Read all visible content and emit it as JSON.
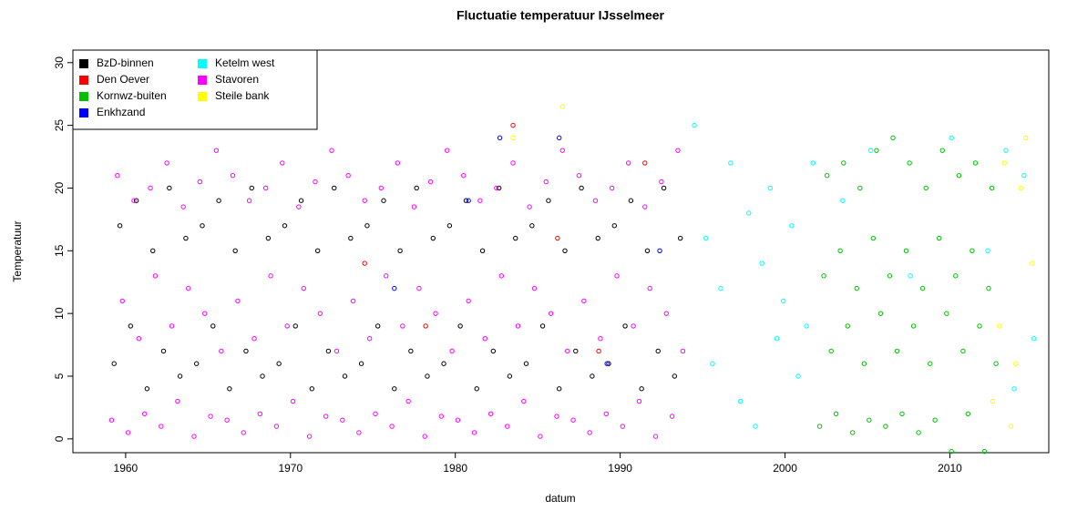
{
  "chart_data": {
    "type": "scatter",
    "title": "Fluctuatie temperatuur IJsselmeer",
    "x_label": "datum",
    "y_label": "Temperatuur",
    "xlim": [
      1956.8,
      2016
    ],
    "ylim": [
      -1.1,
      31
    ],
    "xticks": [
      1960,
      1970,
      1980,
      1990,
      2000,
      2010
    ],
    "yticks": [
      0,
      5,
      10,
      15,
      20,
      25,
      30
    ],
    "legend": "topleft",
    "series": [
      {
        "name": "BzD-binnen",
        "color": "#000000",
        "x": [
          1959.3,
          1959.65,
          1960.3,
          1960.65,
          1961.3,
          1961.65,
          1962.3,
          1962.65,
          1963.3,
          1963.65,
          1964.3,
          1964.65,
          1965.3,
          1965.65,
          1966.3,
          1966.65,
          1967.3,
          1967.65,
          1968.3,
          1968.65,
          1969.3,
          1969.65,
          1970.3,
          1970.65,
          1971.3,
          1971.65,
          1972.3,
          1972.65,
          1973.3,
          1973.65,
          1974.3,
          1974.65,
          1975.3,
          1975.65,
          1976.3,
          1976.65,
          1977.3,
          1977.65,
          1978.3,
          1978.65,
          1979.3,
          1979.65,
          1980.3,
          1980.65,
          1981.3,
          1981.65,
          1982.3,
          1982.65,
          1983.3,
          1983.65,
          1984.3,
          1984.65,
          1985.3,
          1985.65,
          1986.3,
          1986.65,
          1987.3,
          1987.65,
          1988.3,
          1988.65,
          1989.3,
          1989.65,
          1990.3,
          1990.65,
          1991.3,
          1991.65,
          1992.3,
          1992.65,
          1993.3,
          1993.65
        ],
        "values": [
          6,
          17,
          9,
          19,
          4,
          15,
          7,
          20,
          5,
          16,
          6,
          17,
          9,
          19,
          4,
          15,
          7,
          20,
          5,
          16,
          6,
          17,
          9,
          19,
          4,
          15,
          7,
          20,
          5,
          16,
          6,
          17,
          9,
          19,
          4,
          15,
          7,
          20,
          5,
          16,
          6,
          17,
          9,
          19,
          4,
          15,
          7,
          20,
          5,
          16,
          6,
          17,
          9,
          19,
          4,
          15,
          7,
          20,
          5,
          16,
          6,
          17,
          9,
          19,
          4,
          15,
          7,
          20,
          5,
          16
        ]
      },
      {
        "name": "Den Oever",
        "color": "#ff0000",
        "x": [
          1974.5,
          1978.2,
          1983.5,
          1986.2,
          1988.7,
          1991.5
        ],
        "values": [
          14,
          9,
          25,
          16,
          7,
          22
        ]
      },
      {
        "name": "Kornwz-buiten",
        "color": "#00c000",
        "x": [
          2002.1,
          2002.35,
          2002.55,
          2002.8,
          2003.1,
          2003.35,
          2003.55,
          2003.8,
          2004.1,
          2004.35,
          2004.55,
          2004.8,
          2005.1,
          2005.35,
          2005.55,
          2005.8,
          2006.1,
          2006.35,
          2006.55,
          2006.8,
          2007.1,
          2007.35,
          2007.55,
          2007.8,
          2008.1,
          2008.35,
          2008.55,
          2008.8,
          2009.1,
          2009.35,
          2009.55,
          2009.8,
          2010.1,
          2010.35,
          2010.55,
          2010.8,
          2011.1,
          2011.35,
          2011.55,
          2011.8,
          2012.1,
          2012.35,
          2012.55,
          2012.8
        ],
        "values": [
          1,
          13,
          21,
          7,
          2,
          15,
          22,
          9,
          0.5,
          12,
          20,
          6,
          1.5,
          16,
          23,
          10,
          1,
          13,
          24,
          7,
          2,
          15,
          22,
          9,
          0.5,
          12,
          20,
          6,
          1.5,
          16,
          23,
          10,
          -1,
          13,
          21,
          7,
          2,
          15,
          22,
          9,
          -1,
          12,
          20,
          6
        ]
      },
      {
        "name": "Enkhzand",
        "color": "#0000ff",
        "x": [
          1976.3,
          1980.8,
          1982.7,
          1986.3,
          1989.2,
          1992.4
        ],
        "values": [
          12,
          19,
          24,
          24,
          6,
          15
        ]
      },
      {
        "name": "Ketelm west",
        "color": "#00ffff",
        "x": [
          1994.5,
          1995.2,
          1995.6,
          1996.1,
          1996.7,
          1997.3,
          1997.8,
          1998.2,
          1998.6,
          1999.1,
          1999.5,
          1999.9,
          2000.4,
          2000.8,
          2001.3,
          2001.7,
          2003.5,
          2005.2,
          2007.6,
          2010.1,
          2012.3,
          2013.4,
          2013.9,
          2014.5,
          2015.1
        ],
        "values": [
          25,
          16,
          6,
          12,
          22,
          3,
          18,
          1,
          14,
          20,
          8,
          11,
          17,
          5,
          9,
          22,
          19,
          23,
          13,
          24,
          15,
          23,
          4,
          21,
          8
        ]
      },
      {
        "name": "Stavoren",
        "color": "#ff00ff",
        "x": [
          1959.15,
          1959.5,
          1959.8,
          1960.15,
          1960.5,
          1960.8,
          1961.15,
          1961.5,
          1961.8,
          1962.15,
          1962.5,
          1962.8,
          1963.15,
          1963.5,
          1963.8,
          1964.15,
          1964.5,
          1964.8,
          1965.15,
          1965.5,
          1965.8,
          1966.15,
          1966.5,
          1966.8,
          1967.15,
          1967.5,
          1967.8,
          1968.15,
          1968.5,
          1968.8,
          1969.15,
          1969.5,
          1969.8,
          1970.15,
          1970.5,
          1970.8,
          1971.15,
          1971.5,
          1971.8,
          1972.15,
          1972.5,
          1972.8,
          1973.15,
          1973.5,
          1973.8,
          1974.15,
          1974.5,
          1974.8,
          1975.15,
          1975.5,
          1975.8,
          1976.15,
          1976.5,
          1976.8,
          1977.15,
          1977.5,
          1977.8,
          1978.15,
          1978.5,
          1978.8,
          1979.15,
          1979.5,
          1979.8,
          1980.15,
          1980.5,
          1980.8,
          1981.15,
          1981.5,
          1981.8,
          1982.15,
          1982.5,
          1982.8,
          1983.15,
          1983.5,
          1983.8,
          1984.15,
          1984.5,
          1984.8,
          1985.15,
          1985.5,
          1985.8,
          1986.15,
          1986.5,
          1986.8,
          1987.15,
          1987.5,
          1987.8,
          1988.15,
          1988.5,
          1988.8,
          1989.15,
          1989.5,
          1989.8,
          1990.15,
          1990.5,
          1990.8,
          1991.15,
          1991.5,
          1991.8,
          1992.15,
          1992.5,
          1992.8,
          1993.15,
          1993.5,
          1993.8
        ],
        "values": [
          1.5,
          21,
          11,
          0.5,
          19,
          8,
          2,
          20,
          13,
          1,
          22,
          9,
          3,
          18.5,
          12,
          0.2,
          20.5,
          10,
          1.8,
          23,
          7,
          1.5,
          21,
          11,
          0.5,
          19,
          8,
          2,
          20,
          13,
          1,
          22,
          9,
          3,
          18.5,
          12,
          0.2,
          20.5,
          10,
          1.8,
          23,
          7,
          1.5,
          21,
          11,
          0.5,
          19,
          8,
          2,
          20,
          13,
          1,
          22,
          9,
          3,
          18.5,
          12,
          0.2,
          20.5,
          10,
          1.8,
          23,
          7,
          1.5,
          21,
          11,
          0.5,
          19,
          8,
          2,
          20,
          13,
          1,
          22,
          9,
          3,
          18.5,
          12,
          0.2,
          20.5,
          10,
          1.8,
          23,
          7,
          1.5,
          21,
          11,
          0.5,
          19,
          8,
          2,
          20,
          13,
          1,
          22,
          9,
          3,
          18.5,
          12,
          0.2,
          20.5,
          10,
          1.8,
          23,
          7
        ]
      },
      {
        "name": "Steile bank",
        "color": "#ffff00",
        "x": [
          1983.5,
          1986.5,
          2012.6,
          2013.0,
          2013.3,
          2013.7,
          2014.0,
          2014.3,
          2014.6,
          2015.0
        ],
        "values": [
          24,
          26.5,
          3,
          9,
          22,
          1,
          6,
          20,
          24,
          14
        ]
      }
    ]
  }
}
